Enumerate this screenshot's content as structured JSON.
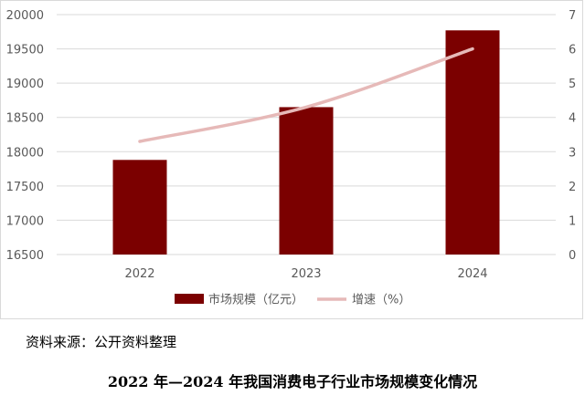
{
  "chart_data": {
    "type": "bar",
    "categories": [
      "2022",
      "2023",
      "2024"
    ],
    "series": [
      {
        "name": "市场规模（亿元）",
        "type": "bar",
        "axis": "left",
        "values": [
          17880,
          18650,
          19770
        ],
        "color": "#7b0000"
      },
      {
        "name": "增速（%）",
        "type": "line",
        "axis": "right",
        "values": [
          3.3,
          4.3,
          6.0
        ],
        "color": "#e6b9b8"
      }
    ],
    "y_left": {
      "min": 16500,
      "max": 20000,
      "step": 500
    },
    "y_right": {
      "min": 0,
      "max": 7,
      "step": 1
    },
    "grid": true,
    "legend": "bottom"
  },
  "source_text": "资料来源：公开资料整理",
  "caption": "2022 年—2024 年我国消费电子行业市场规模变化情况"
}
